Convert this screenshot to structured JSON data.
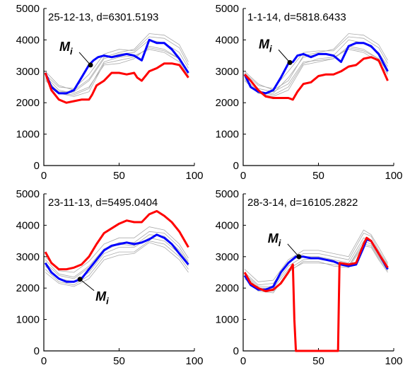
{
  "chart_data": [
    {
      "type": "line",
      "title": "25-12-13, d=6301.5193",
      "xlim": [
        0,
        100
      ],
      "ylim": [
        0,
        5000
      ],
      "xticks": [
        0,
        50,
        100
      ],
      "yticks": [
        0,
        1000,
        2000,
        3000,
        4000,
        5000
      ],
      "marker": {
        "label": "M",
        "subscript": "i",
        "x": 31,
        "y": 3200,
        "label_side": "upper-left"
      },
      "background": [
        {
          "x": [
            1,
            10,
            20,
            30,
            40,
            50,
            60,
            70,
            80,
            90,
            96
          ],
          "y": [
            2850,
            2400,
            2300,
            2500,
            3200,
            3250,
            3400,
            3800,
            3700,
            3400,
            2900
          ]
        },
        {
          "x": [
            1,
            10,
            20,
            30,
            40,
            50,
            60,
            70,
            80,
            90,
            96
          ],
          "y": [
            2700,
            2350,
            2350,
            2700,
            3400,
            3550,
            3600,
            4000,
            3900,
            3600,
            3100
          ]
        },
        {
          "x": [
            1,
            10,
            20,
            30,
            40,
            50,
            60,
            70,
            80,
            90,
            96
          ],
          "y": [
            2900,
            2500,
            2450,
            2900,
            3550,
            3700,
            3650,
            4100,
            4050,
            3750,
            3200
          ]
        },
        {
          "x": [
            1,
            10,
            20,
            30,
            40,
            50,
            60,
            70,
            80,
            90,
            96
          ],
          "y": [
            2800,
            2300,
            2250,
            2450,
            3300,
            3450,
            3500,
            3700,
            3600,
            3300,
            2850
          ]
        },
        {
          "x": [
            1,
            10,
            20,
            30,
            40,
            50,
            60,
            70,
            80,
            90,
            96
          ],
          "y": [
            3000,
            2550,
            2400,
            2750,
            3450,
            3600,
            3700,
            4200,
            4150,
            3850,
            3300
          ]
        },
        {
          "x": [
            1,
            10,
            20,
            30,
            40,
            50,
            60,
            70,
            80,
            90,
            96
          ],
          "y": [
            2750,
            2300,
            2200,
            2350,
            3250,
            3350,
            3450,
            3750,
            3650,
            3400,
            2950
          ]
        }
      ],
      "series": [
        {
          "color": "#0000ff",
          "x": [
            1,
            5,
            10,
            15,
            20,
            25,
            30,
            33,
            36,
            40,
            45,
            50,
            55,
            60,
            65,
            70,
            75,
            80,
            85,
            90,
            96
          ],
          "y": [
            2950,
            2500,
            2300,
            2300,
            2400,
            2800,
            3200,
            3350,
            3450,
            3500,
            3450,
            3500,
            3550,
            3500,
            3350,
            4000,
            3900,
            3900,
            3700,
            3400,
            2950
          ]
        },
        {
          "color": "#ff0000",
          "x": [
            1,
            5,
            10,
            15,
            20,
            25,
            30,
            32,
            35,
            40,
            45,
            50,
            55,
            60,
            62,
            65,
            70,
            75,
            80,
            85,
            90,
            96
          ],
          "y": [
            2950,
            2400,
            2100,
            2000,
            2050,
            2100,
            2100,
            2250,
            2550,
            2700,
            2950,
            2950,
            2900,
            2950,
            2800,
            2700,
            3000,
            3100,
            3250,
            3250,
            3200,
            2800
          ]
        }
      ]
    },
    {
      "type": "line",
      "title": "1-1-14, d=5818.6433",
      "xlim": [
        0,
        100
      ],
      "ylim": [
        0,
        5000
      ],
      "xticks": [
        0,
        50,
        100
      ],
      "yticks": [
        0,
        1000,
        2000,
        3000,
        4000,
        5000
      ],
      "marker": {
        "label": "M",
        "subscript": "i",
        "x": 31,
        "y": 3280,
        "label_side": "upper-left"
      },
      "background": [
        {
          "x": [
            1,
            10,
            20,
            30,
            40,
            50,
            60,
            70,
            80,
            90,
            96
          ],
          "y": [
            2850,
            2450,
            2350,
            2600,
            3300,
            3350,
            3400,
            3800,
            3700,
            3400,
            2950
          ]
        },
        {
          "x": [
            1,
            10,
            20,
            30,
            40,
            50,
            60,
            70,
            80,
            90,
            96
          ],
          "y": [
            2700,
            2300,
            2300,
            2800,
            3450,
            3550,
            3500,
            4000,
            3900,
            3600,
            3150
          ]
        },
        {
          "x": [
            1,
            10,
            20,
            30,
            40,
            50,
            60,
            70,
            80,
            90,
            96
          ],
          "y": [
            2950,
            2550,
            2450,
            3000,
            3600,
            3650,
            3650,
            4100,
            4050,
            3750,
            3250
          ]
        },
        {
          "x": [
            1,
            10,
            20,
            30,
            40,
            50,
            60,
            70,
            80,
            90,
            96
          ],
          "y": [
            2800,
            2350,
            2250,
            2500,
            3250,
            3400,
            3450,
            3700,
            3600,
            3300,
            2900
          ]
        },
        {
          "x": [
            1,
            10,
            20,
            30,
            40,
            50,
            60,
            70,
            80,
            90,
            96
          ],
          "y": [
            3000,
            2600,
            2400,
            2700,
            3500,
            3600,
            3700,
            4200,
            4150,
            3850,
            3350
          ]
        },
        {
          "x": [
            1,
            10,
            20,
            30,
            40,
            50,
            60,
            70,
            80,
            90,
            96
          ],
          "y": [
            2750,
            2300,
            2200,
            2400,
            3200,
            3300,
            3400,
            3750,
            3650,
            3400,
            3000
          ]
        }
      ],
      "series": [
        {
          "color": "#0000ff",
          "x": [
            1,
            5,
            10,
            15,
            20,
            25,
            30,
            33,
            36,
            40,
            45,
            50,
            55,
            60,
            65,
            70,
            75,
            80,
            85,
            90,
            96
          ],
          "y": [
            2900,
            2500,
            2350,
            2300,
            2400,
            2800,
            3250,
            3300,
            3500,
            3550,
            3450,
            3550,
            3550,
            3500,
            3300,
            3800,
            3900,
            3900,
            3800,
            3550,
            3000
          ]
        },
        {
          "color": "#ff0000",
          "x": [
            1,
            5,
            10,
            15,
            20,
            25,
            30,
            33,
            36,
            40,
            45,
            50,
            55,
            60,
            65,
            70,
            75,
            80,
            85,
            90,
            96
          ],
          "y": [
            2900,
            2700,
            2400,
            2200,
            2150,
            2150,
            2150,
            2100,
            2350,
            2600,
            2650,
            2850,
            2900,
            2900,
            3000,
            3150,
            3200,
            3400,
            3450,
            3350,
            2700
          ]
        }
      ]
    },
    {
      "type": "line",
      "title": "23-11-13, d=5495.0404",
      "xlim": [
        0,
        100
      ],
      "ylim": [
        0,
        5000
      ],
      "xticks": [
        0,
        50,
        100
      ],
      "yticks": [
        0,
        1000,
        2000,
        3000,
        4000,
        5000
      ],
      "marker": {
        "label": "M",
        "subscript": "i",
        "x": 24,
        "y": 2280,
        "label_side": "lower-right"
      },
      "background": [
        {
          "x": [
            1,
            10,
            20,
            30,
            40,
            50,
            60,
            70,
            80,
            90,
            96
          ],
          "y": [
            2700,
            2300,
            2200,
            2500,
            3100,
            3300,
            3300,
            3600,
            3500,
            3100,
            2700
          ]
        },
        {
          "x": [
            1,
            10,
            20,
            30,
            40,
            50,
            60,
            70,
            80,
            90,
            96
          ],
          "y": [
            2900,
            2450,
            2350,
            2700,
            3250,
            3450,
            3450,
            3800,
            3750,
            3300,
            2850
          ]
        },
        {
          "x": [
            1,
            10,
            20,
            30,
            40,
            50,
            60,
            70,
            80,
            90,
            96
          ],
          "y": [
            2600,
            2200,
            2100,
            2400,
            3000,
            3150,
            3150,
            3500,
            3400,
            3000,
            2600
          ]
        },
        {
          "x": [
            1,
            10,
            20,
            30,
            40,
            50,
            60,
            70,
            80,
            90,
            96
          ],
          "y": [
            3000,
            2550,
            2500,
            2850,
            3400,
            3600,
            3600,
            3950,
            3850,
            3400,
            2950
          ]
        },
        {
          "x": [
            1,
            10,
            20,
            30,
            40,
            50,
            60,
            70,
            80,
            90,
            96
          ],
          "y": [
            2500,
            2150,
            2050,
            2300,
            2900,
            3050,
            3100,
            3450,
            3300,
            2900,
            2500
          ]
        },
        {
          "x": [
            1,
            10,
            20,
            30,
            40,
            50,
            60,
            70,
            80,
            90,
            96
          ],
          "y": [
            2800,
            2400,
            2300,
            2650,
            3200,
            3400,
            3350,
            3700,
            3650,
            3200,
            2800
          ]
        }
      ],
      "series": [
        {
          "color": "#0000ff",
          "x": [
            1,
            5,
            10,
            15,
            20,
            25,
            30,
            35,
            40,
            45,
            50,
            55,
            60,
            65,
            70,
            75,
            80,
            85,
            90,
            96
          ],
          "y": [
            2800,
            2500,
            2300,
            2200,
            2200,
            2300,
            2600,
            2900,
            3200,
            3350,
            3400,
            3450,
            3400,
            3450,
            3550,
            3700,
            3600,
            3400,
            3100,
            2750
          ]
        },
        {
          "color": "#ff0000",
          "x": [
            1,
            5,
            10,
            15,
            20,
            25,
            30,
            35,
            40,
            45,
            50,
            55,
            60,
            65,
            70,
            75,
            80,
            85,
            90,
            96
          ],
          "y": [
            3150,
            2800,
            2600,
            2600,
            2650,
            2750,
            3000,
            3400,
            3750,
            3900,
            4050,
            4150,
            4100,
            4100,
            4350,
            4450,
            4300,
            4100,
            3800,
            3300
          ]
        }
      ]
    },
    {
      "type": "line",
      "title": "28-3-14, d=16105.2822",
      "xlim": [
        0,
        100
      ],
      "ylim": [
        0,
        5000
      ],
      "xticks": [
        0,
        50,
        100
      ],
      "yticks": [
        0,
        1000,
        2000,
        3000,
        4000,
        5000
      ],
      "marker": {
        "label": "M",
        "subscript": "i",
        "x": 37,
        "y": 3000,
        "label_side": "upper-left"
      },
      "background": [
        {
          "x": [
            1,
            10,
            20,
            30,
            40,
            50,
            60,
            70,
            80,
            85,
            90,
            96
          ],
          "y": [
            2400,
            2000,
            2000,
            2600,
            2900,
            2950,
            2850,
            2700,
            3500,
            3400,
            3000,
            2600
          ]
        },
        {
          "x": [
            1,
            10,
            20,
            30,
            40,
            50,
            60,
            70,
            80,
            85,
            90,
            96
          ],
          "y": [
            2500,
            2100,
            2150,
            2800,
            3100,
            3100,
            3000,
            2900,
            3750,
            3650,
            3200,
            2750
          ]
        },
        {
          "x": [
            1,
            10,
            20,
            30,
            40,
            50,
            60,
            70,
            80,
            85,
            90,
            96
          ],
          "y": [
            2300,
            1950,
            1900,
            2500,
            2850,
            2850,
            2700,
            2650,
            3350,
            3300,
            2900,
            2500
          ]
        },
        {
          "x": [
            1,
            10,
            20,
            30,
            40,
            50,
            60,
            70,
            80,
            85,
            90,
            96
          ],
          "y": [
            2600,
            2200,
            2250,
            2900,
            3200,
            3200,
            3100,
            3000,
            3850,
            3700,
            3300,
            2800
          ]
        },
        {
          "x": [
            1,
            10,
            20,
            30,
            40,
            50,
            60,
            70,
            80,
            85,
            90,
            96
          ],
          "y": [
            2450,
            2050,
            2050,
            2700,
            3000,
            3000,
            2900,
            2800,
            3600,
            3500,
            3100,
            2650
          ]
        },
        {
          "x": [
            1,
            10,
            20,
            30,
            40,
            50,
            60,
            70,
            80,
            85,
            90,
            96
          ],
          "y": [
            2350,
            1900,
            1850,
            2550,
            2800,
            2800,
            2750,
            2700,
            3400,
            3350,
            2950,
            2550
          ]
        }
      ],
      "series": [
        {
          "color": "#0000ff",
          "x": [
            1,
            5,
            10,
            15,
            20,
            25,
            30,
            35,
            40,
            45,
            50,
            55,
            60,
            65,
            70,
            75,
            80,
            82,
            85,
            90,
            96
          ],
          "y": [
            2400,
            2100,
            1950,
            1950,
            2050,
            2500,
            2800,
            3000,
            3000,
            2950,
            2950,
            2900,
            2850,
            2750,
            2700,
            2750,
            3300,
            3550,
            3500,
            3100,
            2600
          ]
        },
        {
          "color": "#ff0000",
          "x": [
            1,
            5,
            10,
            15,
            20,
            25,
            30,
            33,
            34,
            35,
            40,
            45,
            50,
            55,
            60,
            63,
            63.5,
            64,
            70,
            75,
            80,
            82,
            85,
            90,
            96
          ],
          "y": [
            2500,
            2150,
            2000,
            1900,
            1950,
            2150,
            2500,
            2750,
            1000,
            0,
            0,
            0,
            0,
            0,
            0,
            0,
            1500,
            2800,
            2750,
            2800,
            3400,
            3600,
            3500,
            3100,
            2650
          ]
        }
      ]
    }
  ]
}
